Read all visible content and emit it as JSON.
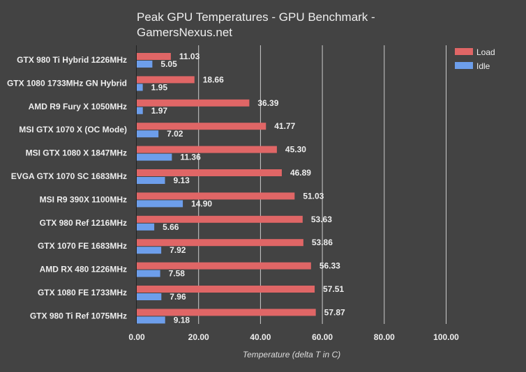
{
  "chart_data": {
    "type": "bar",
    "orientation": "horizontal",
    "title": "Peak GPU Temperatures - GPU Benchmark - GamersNexus.net",
    "title_lines": [
      "Peak GPU Temperatures - GPU Benchmark -",
      "GamersNexus.net"
    ],
    "xlabel": "Temperature (delta T in C)",
    "ylabel": "",
    "xlim": [
      0,
      100
    ],
    "x_ticks": [
      "0.00",
      "20.00",
      "40.00",
      "60.00",
      "80.00",
      "100.00"
    ],
    "x_tick_values": [
      0,
      20,
      40,
      60,
      80,
      100
    ],
    "grid": "vertical",
    "legend_position": "top-right",
    "categories": [
      "GTX 980 Ti Hybrid 1226MHz",
      "GTX 1080 1733MHz GN Hybrid",
      "AMD R9 Fury X 1050MHz",
      "MSI GTX 1070 X (OC Mode)",
      "MSI GTX 1080 X 1847MHz",
      "EVGA GTX 1070 SC 1683MHz",
      "MSI R9 390X 1100MHz",
      "GTX 980 Ref 1216MHz",
      "GTX 1070 FE 1683MHz",
      "AMD RX 480 1226MHz",
      "GTX 1080 FE 1733MHz",
      "GTX 980 Ti Ref 1075MHz"
    ],
    "series": [
      {
        "name": "Load",
        "color": "#e06666",
        "values": [
          11.03,
          18.66,
          36.39,
          41.77,
          45.3,
          46.89,
          51.03,
          53.63,
          53.86,
          56.33,
          57.51,
          57.87
        ],
        "labels": [
          "11.03",
          "18.66",
          "36.39",
          "41.77",
          "45.30",
          "46.89",
          "51.03",
          "53.63",
          "53.86",
          "56.33",
          "57.51",
          "57.87"
        ]
      },
      {
        "name": "Idle",
        "color": "#6d9eeb",
        "values": [
          5.05,
          1.95,
          1.97,
          7.02,
          11.36,
          9.13,
          14.9,
          5.66,
          7.92,
          7.58,
          7.96,
          9.18
        ],
        "labels": [
          "5.05",
          "1.95",
          "1.97",
          "7.02",
          "11.36",
          "9.13",
          "14.90",
          "5.66",
          "7.92",
          "7.58",
          "7.96",
          "9.18"
        ]
      }
    ]
  },
  "colors": {
    "background": "#434343",
    "text": "#eeeeee",
    "grid": "#cccccc"
  }
}
